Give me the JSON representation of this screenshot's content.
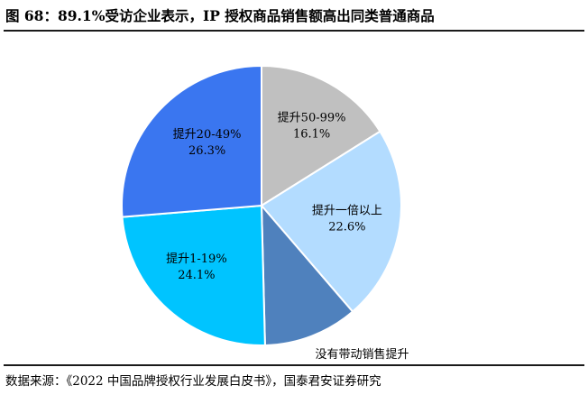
{
  "figure": {
    "title": "图 68：89.1%受访企业表示，IP 授权商品销售额高出同类普通商品",
    "source": "数据来源：《2022 中国品牌授权行业发展白皮书》，国泰君安证券研究"
  },
  "chart_data": {
    "type": "pie",
    "title": "",
    "slices": [
      {
        "label": "提升50-99%",
        "value": 16.1,
        "value_text": "16.1%",
        "color": "#c0c0c0"
      },
      {
        "label": "提升一倍以上",
        "value": 22.6,
        "value_text": "22.6%",
        "color": "#b3dcff"
      },
      {
        "label": "没有带动销售提升",
        "value": 10.9,
        "value_text": "10.9%",
        "color": "#4f81bd"
      },
      {
        "label": "提升1-19%",
        "value": 24.1,
        "value_text": "24.1%",
        "color": "#00c4ff"
      },
      {
        "label": "提升20-49%",
        "value": 26.3,
        "value_text": "26.3%",
        "color": "#3a76f0"
      }
    ],
    "start": "12 o'clock",
    "direction": "clockwise",
    "legend": "none"
  }
}
